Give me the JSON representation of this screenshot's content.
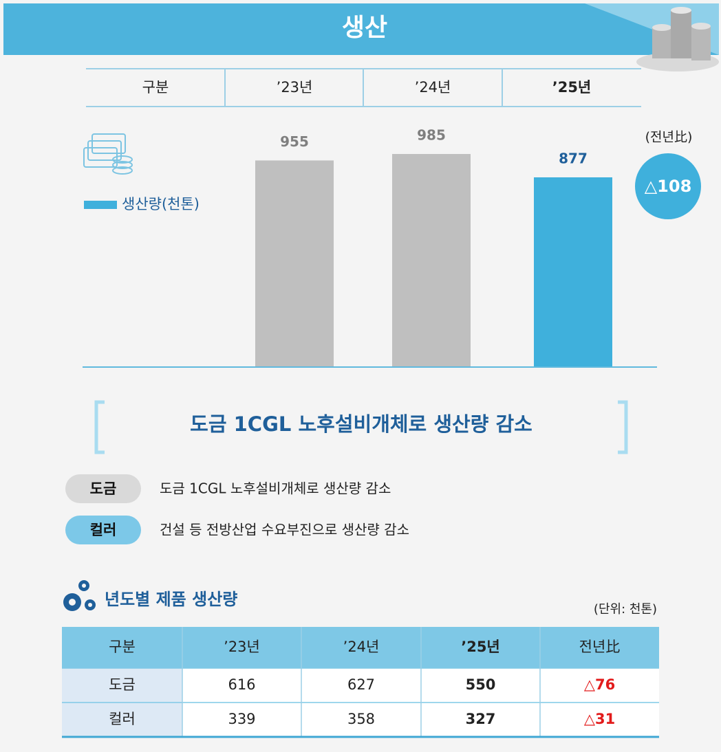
{
  "header": {
    "title": "생산"
  },
  "year_row_label": "구분",
  "chart_data": {
    "type": "bar",
    "categories": [
      "’23년",
      "’24년",
      "’25년"
    ],
    "series": [
      {
        "name": "생산량(천톤)",
        "color": "#3fb0dc",
        "values": [
          955,
          985,
          877
        ]
      }
    ],
    "bar_colors": [
      "#bfbfbf",
      "#bfbfbf",
      "#3fb0dc"
    ],
    "label_colors": [
      "#7f7f7f",
      "#7f7f7f",
      "#1f5f9a"
    ],
    "annotation": "(전년比)",
    "change_label": "△108"
  },
  "headline": "도금 1CGL 노후설비개체로  생산량 감소",
  "notes": [
    {
      "tag": "도금",
      "text": "도금 1CGL 노후설비개체로 생산량 감소"
    },
    {
      "tag": "컬러",
      "text": "건설 등 전방산업 수요부진으로 생산량 감소"
    }
  ],
  "table": {
    "title": "년도별 제품 생산량",
    "unit": "(단위: 천톤)",
    "header": [
      "구분",
      "’23년",
      "’24년",
      "’25년",
      "전년比"
    ],
    "rows": [
      [
        "도금",
        616,
        627,
        550,
        "△76"
      ],
      [
        "컬러",
        339,
        358,
        327,
        "△31"
      ]
    ]
  }
}
